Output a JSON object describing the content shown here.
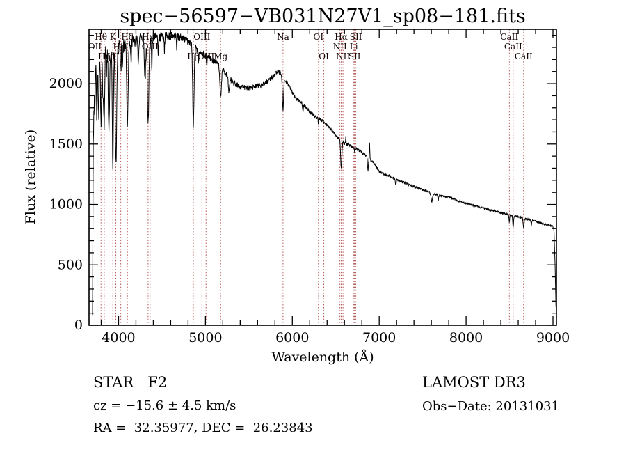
{
  "title": "spec−56597−VB031N27V1_sp08−181.fits",
  "axes": {
    "xlabel": "Wavelength (Å)",
    "ylabel": "Flux (relative)"
  },
  "footer": {
    "class_line": "STAR   F2",
    "cz_line": "cz = −15.6 ± 4.5 km/s",
    "radec_line": "RA =  32.35977, DEC =  26.23843",
    "survey": "LAMOST DR3",
    "obs_date": "Obs−Date: 20131031"
  },
  "chart_data": {
    "type": "line",
    "title": "spec−56597−VB031N27V1_sp08−181.fits",
    "xlabel": "Wavelength (Å)",
    "ylabel": "Flux (relative)",
    "xlim": [
      3660,
      9040
    ],
    "ylim": [
      0,
      2450
    ],
    "xticks": [
      4000,
      5000,
      6000,
      7000,
      8000,
      9000
    ],
    "yticks": [
      0,
      500,
      1000,
      1500,
      2000
    ],
    "x_minor_step": 200,
    "y_minor_step": 100,
    "grid": false,
    "legend": "none",
    "colors": {
      "spectrum": "#000000",
      "marker": "#aa4444",
      "label": "#120000",
      "axis": "#000000"
    },
    "spectral_lines": [
      {
        "wavelength": 3727,
        "label": "OII",
        "row": 2
      },
      {
        "wavelength": 3798,
        "label": "Hθ",
        "row": 1
      },
      {
        "wavelength": 3835,
        "label": "Hη",
        "row": 3
      },
      {
        "wavelength": 3889,
        "label": "Hζ",
        "row": 3
      },
      {
        "wavelength": 3934,
        "label": "K",
        "row": 1
      },
      {
        "wavelength": 3968,
        "label": "H",
        "row": 3
      },
      {
        "wavelength": 4026,
        "label": "HeI",
        "row": 2
      },
      {
        "wavelength": 4102,
        "label": "Hδ",
        "row": 1
      },
      {
        "wavelength": 4340,
        "label": "Hγ",
        "row": 1
      },
      {
        "wavelength": 4363,
        "label": "OIII",
        "row": 2
      },
      {
        "wavelength": 4861,
        "label": "Hβ",
        "row": 3
      },
      {
        "wavelength": 4959,
        "label": "OIII",
        "row": 1
      },
      {
        "wavelength": 5007,
        "label": "OIII",
        "row": 3
      },
      {
        "wavelength": 5175,
        "label": "Mg",
        "row": 3
      },
      {
        "wavelength": 5893,
        "label": "Na",
        "row": 1
      },
      {
        "wavelength": 6300,
        "label": "OI",
        "row": 1
      },
      {
        "wavelength": 6363,
        "label": "OI",
        "row": 3
      },
      {
        "wavelength": 6548,
        "label": "NII",
        "row": 2
      },
      {
        "wavelength": 6563,
        "label": "Hα",
        "row": 1
      },
      {
        "wavelength": 6583,
        "label": "NII",
        "row": 3
      },
      {
        "wavelength": 6708,
        "label": "Li",
        "row": 2
      },
      {
        "wavelength": 6716,
        "label": "SII",
        "row": 3
      },
      {
        "wavelength": 6731,
        "label": "SII",
        "row": 1
      },
      {
        "wavelength": 8498,
        "label": "CaII",
        "row": 1
      },
      {
        "wavelength": 8542,
        "label": "CaII",
        "row": 2
      },
      {
        "wavelength": 8662,
        "label": "CaII",
        "row": 3
      }
    ],
    "continuum_format": "[wavelength_A, flux]",
    "continuum": [
      [
        3700,
        60
      ],
      [
        3704,
        900
      ],
      [
        3710,
        1950
      ],
      [
        3725,
        2120
      ],
      [
        3760,
        2180
      ],
      [
        3800,
        2230
      ],
      [
        3850,
        2270
      ],
      [
        3900,
        2300
      ],
      [
        3950,
        2310
      ],
      [
        4000,
        2300
      ],
      [
        4050,
        2330
      ],
      [
        4100,
        2320
      ],
      [
        4150,
        2360
      ],
      [
        4200,
        2350
      ],
      [
        4250,
        2370
      ],
      [
        4300,
        2360
      ],
      [
        4350,
        2350
      ],
      [
        4400,
        2375
      ],
      [
        4450,
        2385
      ],
      [
        4500,
        2385
      ],
      [
        4550,
        2395
      ],
      [
        4600,
        2395
      ],
      [
        4650,
        2390
      ],
      [
        4700,
        2385
      ],
      [
        4750,
        2370
      ],
      [
        4800,
        2350
      ],
      [
        4850,
        2330
      ],
      [
        4900,
        2290
      ],
      [
        4950,
        2260
      ],
      [
        5000,
        2235
      ],
      [
        5050,
        2210
      ],
      [
        5100,
        2185
      ],
      [
        5150,
        2160
      ],
      [
        5200,
        2120
      ],
      [
        5250,
        2065
      ],
      [
        5300,
        2025
      ],
      [
        5350,
        1990
      ],
      [
        5400,
        1975
      ],
      [
        5450,
        1968
      ],
      [
        5500,
        1965
      ],
      [
        5550,
        1970
      ],
      [
        5600,
        1978
      ],
      [
        5650,
        1990
      ],
      [
        5700,
        2010
      ],
      [
        5750,
        2040
      ],
      [
        5800,
        2080
      ],
      [
        5830,
        2100
      ],
      [
        5870,
        2090
      ],
      [
        5920,
        2020
      ],
      [
        5970,
        1970
      ],
      [
        6020,
        1900
      ],
      [
        6080,
        1855
      ],
      [
        6150,
        1805
      ],
      [
        6250,
        1735
      ],
      [
        6350,
        1690
      ],
      [
        6450,
        1620
      ],
      [
        6520,
        1555
      ],
      [
        6600,
        1505
      ],
      [
        6650,
        1495
      ],
      [
        6750,
        1455
      ],
      [
        6850,
        1405
      ],
      [
        6950,
        1330
      ],
      [
        7000,
        1270
      ],
      [
        7100,
        1240
      ],
      [
        7200,
        1207
      ],
      [
        7300,
        1176
      ],
      [
        7400,
        1148
      ],
      [
        7500,
        1122
      ],
      [
        7600,
        1094
      ],
      [
        7700,
        1075
      ],
      [
        7800,
        1058
      ],
      [
        7900,
        1032
      ],
      [
        8000,
        1010
      ],
      [
        8100,
        988
      ],
      [
        8200,
        968
      ],
      [
        8300,
        950
      ],
      [
        8400,
        932
      ],
      [
        8500,
        916
      ],
      [
        8600,
        898
      ],
      [
        8700,
        878
      ],
      [
        8800,
        860
      ],
      [
        8900,
        838
      ],
      [
        8950,
        828
      ],
      [
        9000,
        818
      ],
      [
        9012,
        780
      ],
      [
        9025,
        480
      ],
      [
        9035,
        110
      ]
    ],
    "absorption_features_format": "[wavelength_A, depth_flux, sigma_A]",
    "absorption_features": [
      [
        3712,
        300,
        5
      ],
      [
        3727,
        330,
        5
      ],
      [
        3750,
        430,
        5
      ],
      [
        3771,
        500,
        5
      ],
      [
        3798,
        560,
        6
      ],
      [
        3820,
        300,
        5
      ],
      [
        3835,
        620,
        6
      ],
      [
        3860,
        200,
        4
      ],
      [
        3889,
        680,
        7
      ],
      [
        3934,
        950,
        7
      ],
      [
        3970,
        980,
        8
      ],
      [
        4026,
        230,
        5
      ],
      [
        4045,
        200,
        4
      ],
      [
        4102,
        650,
        8
      ],
      [
        4144,
        150,
        4
      ],
      [
        4226,
        220,
        4
      ],
      [
        4305,
        330,
        7
      ],
      [
        4340,
        690,
        8
      ],
      [
        4383,
        230,
        4
      ],
      [
        4455,
        130,
        4
      ],
      [
        4528,
        110,
        4
      ],
      [
        4668,
        100,
        4
      ],
      [
        4861,
        660,
        8
      ],
      [
        4920,
        110,
        4
      ],
      [
        5015,
        90,
        4
      ],
      [
        5175,
        240,
        9
      ],
      [
        5270,
        120,
        6
      ],
      [
        5893,
        270,
        7
      ],
      [
        6122,
        60,
        4
      ],
      [
        6300,
        40,
        3
      ],
      [
        6563,
        230,
        7
      ],
      [
        6717,
        50,
        3
      ],
      [
        6870,
        110,
        5
      ],
      [
        7190,
        50,
        5
      ],
      [
        7605,
        70,
        8
      ],
      [
        7680,
        40,
        5
      ],
      [
        8498,
        65,
        4
      ],
      [
        8542,
        95,
        5
      ],
      [
        8662,
        85,
        5
      ],
      [
        8750,
        40,
        4
      ]
    ],
    "emission_spikes_format": "[wavelength_A, height_flux, sigma_A]",
    "emission_spikes": [
      [
        6616,
        60,
        2.5
      ],
      [
        6888,
        150,
        3
      ]
    ],
    "noise_level_format": "[wavelength_A, amplitude_flux]",
    "noise_level": [
      [
        3700,
        90
      ],
      [
        3850,
        80
      ],
      [
        4000,
        65
      ],
      [
        4200,
        55
      ],
      [
        4500,
        40
      ],
      [
        4800,
        32
      ],
      [
        5100,
        26
      ],
      [
        5400,
        22
      ],
      [
        5700,
        20
      ],
      [
        6000,
        16
      ],
      [
        6400,
        13
      ],
      [
        6800,
        12
      ],
      [
        7200,
        10
      ],
      [
        7600,
        9
      ],
      [
        8000,
        8
      ],
      [
        8500,
        8
      ],
      [
        9035,
        9
      ]
    ],
    "noise_seed": 97531,
    "data_range": [
      3700,
      9035
    ],
    "sample_step": 3
  }
}
